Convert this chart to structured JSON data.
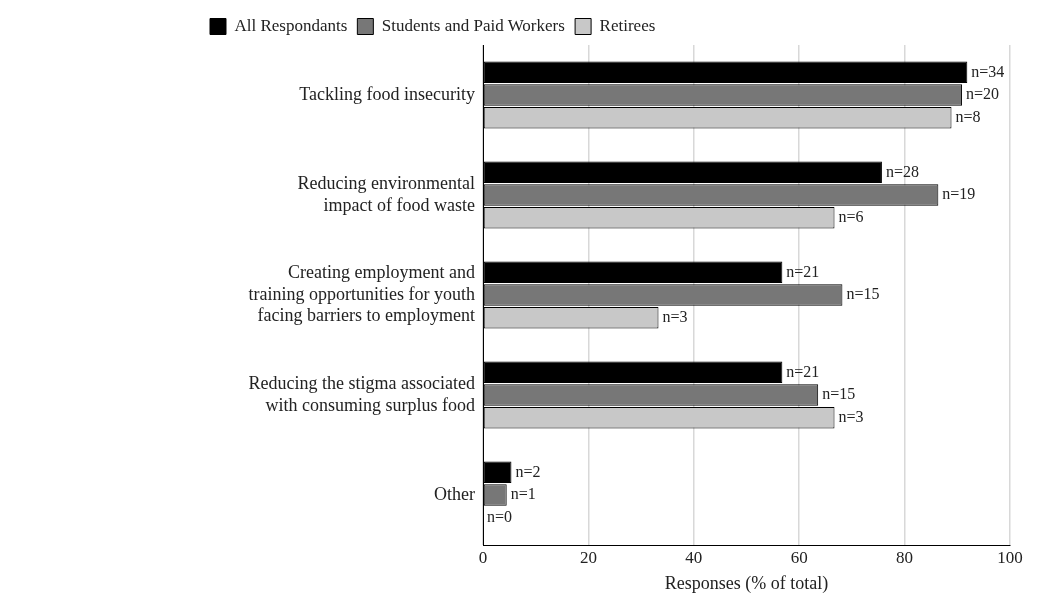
{
  "chart_data": {
    "type": "bar",
    "orientation": "horizontal",
    "xlabel": "Responses (% of total)",
    "categories": [
      "Tackling food insecurity",
      "Reducing environmental impact of food waste",
      "Creating employment and training opportunities for youth facing barriers to employment",
      "Reducing the stigma associated with consuming surplus food",
      "Other"
    ],
    "series": [
      {
        "name": "All Respondants",
        "color": "#000000",
        "values": [
          91.9,
          75.7,
          56.8,
          56.8,
          5.4
        ]
      },
      {
        "name": "Students and Paid Workers",
        "color": "#777777",
        "values": [
          90.9,
          86.4,
          68.2,
          63.6,
          4.5
        ]
      },
      {
        "name": "Retirees",
        "color": "#c8c8c8",
        "values": [
          88.9,
          66.7,
          33.3,
          66.7,
          0
        ]
      }
    ],
    "annotations": [
      "n=34",
      "n=20",
      "n=8",
      "n=28",
      "n=19",
      "n=6",
      "n=21",
      "n=15",
      "n=3",
      "n=21",
      "n=15",
      "n=3",
      "n=2",
      "n=1",
      "n=0"
    ],
    "xlim": [
      0,
      100
    ],
    "xticks": [
      0,
      20,
      40,
      60,
      80,
      100
    ],
    "grid": "x",
    "legend": "top left"
  }
}
